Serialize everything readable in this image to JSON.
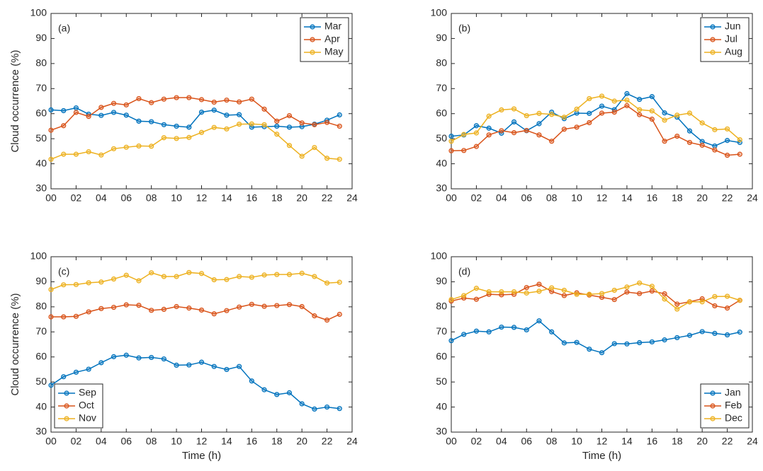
{
  "chart_data": [
    {
      "type": "line",
      "label": "(a)",
      "ylabel": "Cloud occurrence (%)",
      "x": [
        0,
        1,
        2,
        3,
        4,
        5,
        6,
        7,
        8,
        9,
        10,
        11,
        12,
        13,
        14,
        15,
        16,
        17,
        18,
        19,
        20,
        21,
        22,
        23
      ],
      "series": [
        {
          "name": "Mar",
          "color": "#0072bd",
          "values": [
            61.5,
            61.2,
            62.3,
            59.8,
            59.3,
            60.5,
            59.4,
            57,
            56.8,
            55.6,
            55,
            54.6,
            60.6,
            61.4,
            59.4,
            59.6,
            54.6,
            54.8,
            55,
            54.6,
            54.8,
            55.8,
            57.4,
            59.5
          ]
        },
        {
          "name": "Apr",
          "color": "#d95319",
          "values": [
            53.4,
            55.2,
            60.5,
            58.9,
            62.5,
            64.1,
            63.5,
            66,
            64.4,
            65.8,
            66.4,
            66.4,
            65.6,
            64.6,
            65.4,
            64.7,
            65.8,
            61.8,
            57,
            59.2,
            56.3,
            55.6,
            56.5,
            55
          ]
        },
        {
          "name": "May",
          "color": "#edb120",
          "values": [
            41.8,
            43.8,
            43.8,
            44.8,
            43.5,
            46,
            46.6,
            47.1,
            47,
            50.4,
            50.1,
            50.5,
            52.5,
            54.5,
            53.9,
            55.8,
            55.9,
            55.6,
            51.8,
            47.3,
            43,
            46.5,
            42.2,
            41.8
          ]
        }
      ],
      "xlim": [
        0,
        24
      ],
      "xticks": [
        {
          "value": 0,
          "label": "00"
        },
        {
          "value": 2,
          "label": "02"
        },
        {
          "value": 4,
          "label": "04"
        },
        {
          "value": 6,
          "label": "06"
        },
        {
          "value": 8,
          "label": "08"
        },
        10,
        12,
        14,
        16,
        18,
        20,
        22,
        24
      ],
      "ylim": [
        30,
        100
      ],
      "yticks": [
        30,
        40,
        50,
        60,
        70,
        80,
        90,
        100
      ],
      "legend": "upper right"
    },
    {
      "type": "line",
      "label": "(b)",
      "x": [
        0,
        1,
        2,
        3,
        4,
        5,
        6,
        7,
        8,
        9,
        10,
        11,
        12,
        13,
        14,
        15,
        16,
        17,
        18,
        19,
        20,
        21,
        22,
        23
      ],
      "series": [
        {
          "name": "Jun",
          "color": "#0072bd",
          "values": [
            51,
            51.5,
            55.2,
            54.2,
            52.2,
            56.7,
            53.2,
            56,
            60.6,
            58,
            60.2,
            60.1,
            63,
            61.6,
            68,
            65.7,
            66.8,
            60.3,
            58.6,
            53.1,
            48.9,
            47.1,
            49.3,
            48.5
          ]
        },
        {
          "name": "Jul",
          "color": "#d95319",
          "values": [
            45.2,
            45.3,
            46.9,
            51.5,
            53.2,
            52.4,
            53.3,
            51.5,
            49,
            53.8,
            54.6,
            56.4,
            60.2,
            60.6,
            63.2,
            59.6,
            57.8,
            49,
            51,
            48.5,
            47.4,
            45.5,
            43.4,
            43.8
          ]
        },
        {
          "name": "Aug",
          "color": "#edb120",
          "values": [
            49,
            51.7,
            52.3,
            59,
            61.5,
            61.9,
            59.2,
            60.1,
            59.7,
            58.6,
            61.8,
            66,
            67,
            65,
            65.4,
            61.6,
            61.1,
            57.4,
            59.4,
            60.2,
            56.3,
            53.6,
            53.9,
            49.6
          ]
        }
      ],
      "xlim": [
        0,
        24
      ],
      "xticks": [
        {
          "value": 0,
          "label": "00"
        },
        {
          "value": 2,
          "label": "02"
        },
        {
          "value": 4,
          "label": "04"
        },
        {
          "value": 6,
          "label": "06"
        },
        {
          "value": 8,
          "label": "08"
        },
        10,
        12,
        14,
        16,
        18,
        20,
        22,
        24
      ],
      "ylim": [
        30,
        100
      ],
      "yticks": [
        30,
        40,
        50,
        60,
        70,
        80,
        90,
        100
      ],
      "legend": "upper right"
    },
    {
      "type": "line",
      "label": "(c)",
      "ylabel": "Cloud occurrence (%)",
      "xlabel": "Time (h)",
      "x": [
        0,
        1,
        2,
        3,
        4,
        5,
        6,
        7,
        8,
        9,
        10,
        11,
        12,
        13,
        14,
        15,
        16,
        17,
        18,
        19,
        20,
        21,
        22,
        23
      ],
      "series": [
        {
          "name": "Sep",
          "color": "#0072bd",
          "values": [
            48.7,
            52.1,
            53.9,
            55.1,
            57.7,
            60.1,
            60.7,
            59.6,
            59.8,
            59.2,
            56.7,
            56.8,
            57.9,
            56.2,
            55,
            56.2,
            50.4,
            46.9,
            45,
            45.7,
            41.3,
            39.2,
            40,
            39.4
          ]
        },
        {
          "name": "Oct",
          "color": "#d95319",
          "values": [
            76,
            76,
            76.2,
            78,
            79.3,
            79.8,
            80.8,
            80.6,
            78.6,
            79,
            80.1,
            79.5,
            78.7,
            77.2,
            78.5,
            79.9,
            81,
            80.2,
            80.5,
            80.9,
            80.1,
            76.4,
            74.7,
            77
          ]
        },
        {
          "name": "Nov",
          "color": "#edb120",
          "values": [
            86.9,
            88.8,
            88.9,
            89.6,
            89.9,
            91.1,
            92.6,
            90.4,
            93.6,
            92.1,
            92.1,
            93.7,
            93.3,
            90.8,
            90.9,
            92.1,
            91.8,
            92.7,
            92.9,
            92.9,
            93.4,
            92.1,
            89.5,
            89.8
          ]
        }
      ],
      "xlim": [
        0,
        24
      ],
      "xticks": [
        {
          "value": 0,
          "label": "00"
        },
        {
          "value": 2,
          "label": "02"
        },
        {
          "value": 4,
          "label": "04"
        },
        {
          "value": 6,
          "label": "06"
        },
        {
          "value": 8,
          "label": "08"
        },
        10,
        12,
        14,
        16,
        18,
        20,
        22,
        24
      ],
      "ylim": [
        30,
        100
      ],
      "yticks": [
        30,
        40,
        50,
        60,
        70,
        80,
        90,
        100
      ],
      "legend": "lower left"
    },
    {
      "type": "line",
      "label": "(d)",
      "xlabel": "Time (h)",
      "x": [
        0,
        1,
        2,
        3,
        4,
        5,
        6,
        7,
        8,
        9,
        10,
        11,
        12,
        13,
        14,
        15,
        16,
        17,
        18,
        19,
        20,
        21,
        22,
        23
      ],
      "series": [
        {
          "name": "Jan",
          "color": "#0072bd",
          "values": [
            66.5,
            69,
            70.3,
            70,
            71.9,
            71.8,
            70.8,
            74.4,
            70,
            65.6,
            65.8,
            63.1,
            61.7,
            65.3,
            65.2,
            65.7,
            66,
            66.8,
            67.7,
            68.6,
            70.1,
            69.4,
            68.8,
            69.9
          ]
        },
        {
          "name": "Feb",
          "color": "#d95319",
          "values": [
            82.3,
            83.5,
            83,
            85,
            84.8,
            85,
            87.7,
            89,
            86.1,
            84.5,
            85.6,
            84.7,
            83.8,
            82.9,
            85.9,
            85.3,
            86.3,
            85.2,
            81.1,
            82,
            83.2,
            80.4,
            79.5,
            82.6
          ]
        },
        {
          "name": "Dec",
          "color": "#edb120",
          "values": [
            82.9,
            84.5,
            87.4,
            86,
            86,
            86,
            85.5,
            86.2,
            87.6,
            86.6,
            85,
            85,
            85.3,
            86.6,
            87.9,
            89.5,
            88.2,
            83.1,
            79.1,
            82,
            82,
            84.1,
            84.2,
            82.6
          ]
        }
      ],
      "xlim": [
        0,
        24
      ],
      "xticks": [
        {
          "value": 0,
          "label": "00"
        },
        {
          "value": 2,
          "label": "02"
        },
        {
          "value": 4,
          "label": "04"
        },
        {
          "value": 6,
          "label": "06"
        },
        {
          "value": 8,
          "label": "08"
        },
        10,
        12,
        14,
        16,
        18,
        20,
        22,
        24
      ],
      "ylim": [
        30,
        100
      ],
      "yticks": [
        30,
        40,
        50,
        60,
        70,
        80,
        90,
        100
      ],
      "legend": "lower right"
    }
  ]
}
